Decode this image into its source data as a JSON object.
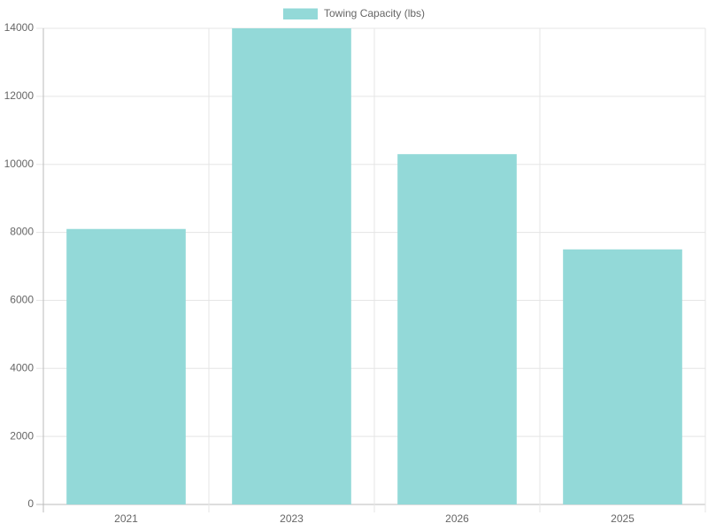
{
  "chart_data": {
    "type": "bar",
    "categories": [
      "2021",
      "2023",
      "2026",
      "2025"
    ],
    "series": [
      {
        "name": "Towing Capacity (lbs)",
        "color": "#93d9d8",
        "values": [
          8100,
          14000,
          10300,
          7500
        ]
      }
    ],
    "ylim": [
      0,
      14000
    ],
    "yticks": [
      0,
      2000,
      4000,
      6000,
      8000,
      10000,
      12000,
      14000
    ],
    "grid": true,
    "legend": "top"
  }
}
